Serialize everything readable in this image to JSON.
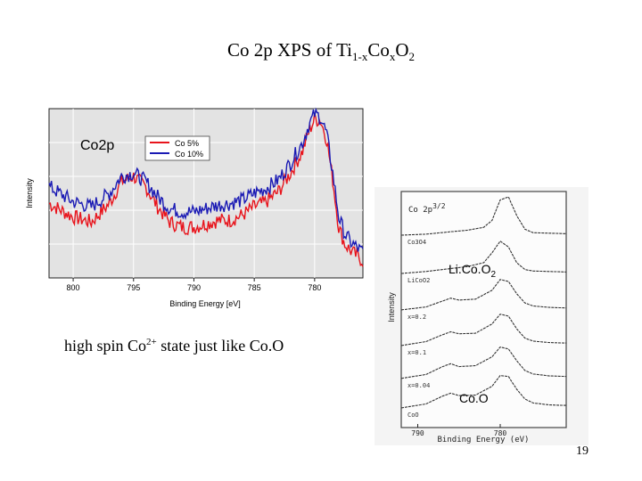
{
  "slide": {
    "title_main": "Co 2p XPS of Ti",
    "title_sub1": "1-x",
    "title_mid": "Co",
    "title_sub2": "x",
    "title_end": "O",
    "title_sub3": "2",
    "caption_main": "high spin Co",
    "caption_sup": "2+",
    "caption_end": " state just like Co.O",
    "page_number": "19"
  },
  "chart_data": [
    {
      "type": "line",
      "title": "",
      "panel_label": "Co2p",
      "xlabel": "Binding Energy [eV]",
      "ylabel": "Intensity",
      "xlim": [
        802,
        776
      ],
      "ylim": [
        0,
        1
      ],
      "x_reversed": true,
      "x_ticks": [
        800,
        795,
        790,
        785,
        780
      ],
      "grid": true,
      "legend_position": "top-right",
      "series": [
        {
          "name": "Co 5%",
          "color": "#e8141c",
          "x": [
            802,
            800,
            798.5,
            797,
            796,
            795,
            794,
            793,
            792,
            791,
            790,
            789,
            788,
            787,
            786,
            785,
            784,
            783,
            782,
            781,
            780.5,
            780,
            779.5,
            779,
            778.5,
            778,
            777.5,
            777,
            776
          ],
          "values": [
            0.44,
            0.36,
            0.33,
            0.44,
            0.57,
            0.6,
            0.54,
            0.42,
            0.33,
            0.3,
            0.3,
            0.32,
            0.34,
            0.34,
            0.37,
            0.42,
            0.45,
            0.51,
            0.62,
            0.75,
            0.86,
            0.94,
            0.93,
            0.82,
            0.58,
            0.3,
            0.2,
            0.16,
            0.1
          ]
        },
        {
          "name": "Co 10%",
          "color": "#1a1ab4",
          "x": [
            802,
            800,
            798.5,
            797,
            796,
            795,
            794,
            793,
            792,
            791,
            790,
            789,
            788,
            787,
            786,
            785,
            784,
            783,
            782,
            781,
            780.5,
            780,
            779.5,
            779,
            778.5,
            778,
            777.5,
            777,
            776
          ],
          "values": [
            0.54,
            0.45,
            0.42,
            0.5,
            0.6,
            0.62,
            0.57,
            0.48,
            0.41,
            0.39,
            0.39,
            0.41,
            0.43,
            0.44,
            0.46,
            0.5,
            0.53,
            0.58,
            0.68,
            0.8,
            0.9,
            0.97,
            0.95,
            0.85,
            0.62,
            0.36,
            0.26,
            0.21,
            0.15
          ]
        }
      ]
    },
    {
      "type": "line",
      "title": "",
      "panel_label": "Co 2p",
      "panel_label_sup": "3/2",
      "xlabel": "Binding Energy (eV)",
      "ylabel": "Intensity",
      "xlim": [
        792,
        772
      ],
      "x_reversed": true,
      "x_ticks": [
        790,
        780
      ],
      "annotations": [
        "Li.Co.O",
        "2",
        "Co.O"
      ],
      "series": [
        {
          "name": "Co3O4",
          "x": [
            792,
            789,
            786,
            784,
            782,
            781,
            780,
            779,
            778,
            777,
            776,
            774,
            772
          ],
          "values": [
            0.2,
            0.22,
            0.27,
            0.3,
            0.36,
            0.5,
            0.92,
            0.98,
            0.6,
            0.32,
            0.25,
            0.24,
            0.23
          ]
        },
        {
          "name": "LiCoO2",
          "x": [
            792,
            789,
            786,
            784,
            782,
            781,
            780,
            779,
            778,
            777,
            776,
            774,
            772
          ],
          "values": [
            0.2,
            0.24,
            0.3,
            0.34,
            0.42,
            0.62,
            0.86,
            0.74,
            0.42,
            0.28,
            0.25,
            0.24,
            0.23
          ]
        },
        {
          "name": "x=0.2",
          "x": [
            792,
            789,
            787,
            786,
            785,
            783,
            781,
            780,
            779,
            778,
            777,
            776,
            774,
            772
          ],
          "values": [
            0.22,
            0.28,
            0.4,
            0.46,
            0.42,
            0.44,
            0.62,
            0.84,
            0.8,
            0.55,
            0.36,
            0.3,
            0.27,
            0.26
          ]
        },
        {
          "name": "x=0.1",
          "x": [
            792,
            789,
            787,
            786,
            785,
            783,
            781,
            780,
            779,
            778,
            777,
            776,
            774,
            772
          ],
          "values": [
            0.22,
            0.3,
            0.44,
            0.5,
            0.46,
            0.47,
            0.66,
            0.86,
            0.82,
            0.56,
            0.37,
            0.31,
            0.28,
            0.27
          ]
        },
        {
          "name": "x=0.04",
          "x": [
            792,
            789,
            787,
            786,
            785,
            783,
            781,
            780,
            779,
            778,
            777,
            776,
            774,
            772
          ],
          "values": [
            0.24,
            0.32,
            0.48,
            0.54,
            0.48,
            0.5,
            0.68,
            0.88,
            0.84,
            0.6,
            0.4,
            0.33,
            0.29,
            0.28
          ]
        },
        {
          "name": "CoO",
          "x": [
            792,
            789,
            787,
            786,
            785,
            783,
            781,
            780,
            779,
            778,
            777,
            776,
            774,
            772
          ],
          "values": [
            0.22,
            0.3,
            0.46,
            0.52,
            0.47,
            0.48,
            0.66,
            0.88,
            0.86,
            0.6,
            0.4,
            0.32,
            0.28,
            0.27
          ]
        }
      ]
    }
  ]
}
